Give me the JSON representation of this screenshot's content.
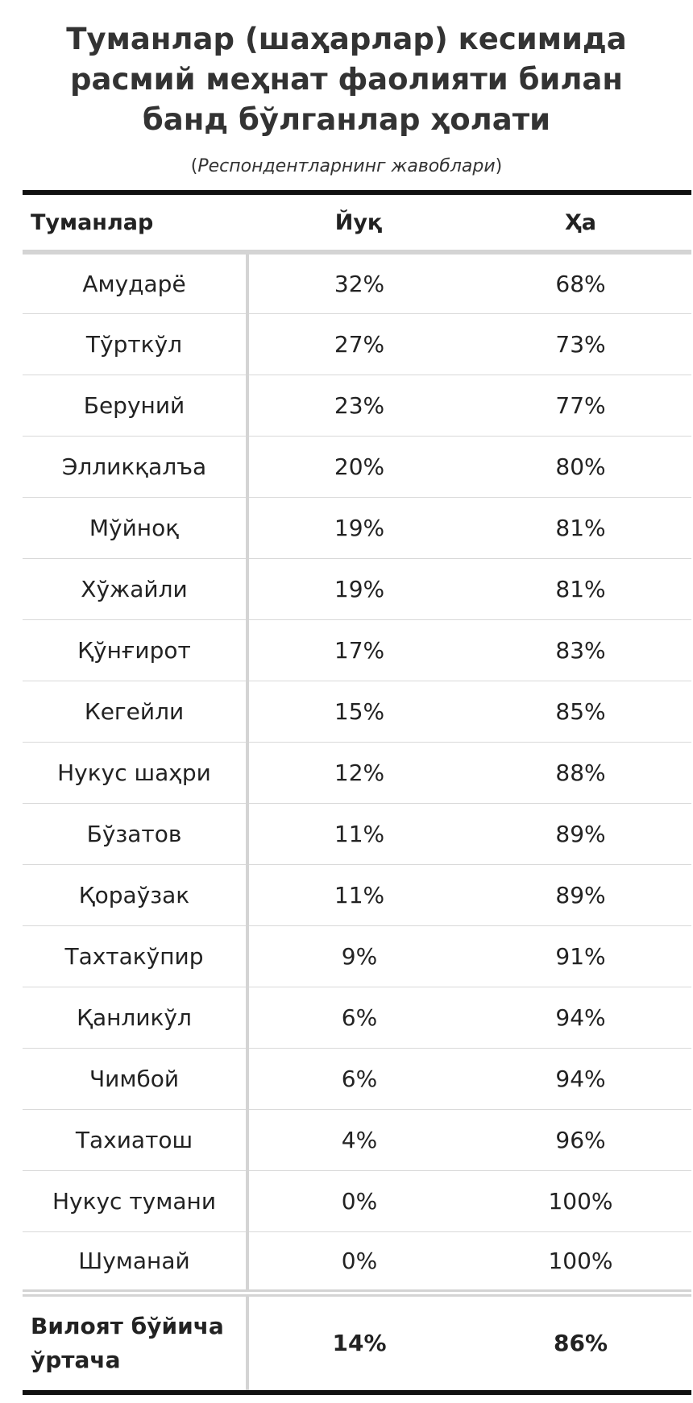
{
  "chart_data": {
    "type": "table",
    "title": "Туманлар (шаҳарлар) кесимида расмий меҳнат фаолияти билан банд бўлганлар ҳолати",
    "subtitle": "Респондентларнинг жавоблари",
    "columns": [
      "Туманлар",
      "Йуқ",
      "Ҳа"
    ],
    "rows": [
      {
        "district": "Амударё",
        "no": "32%",
        "yes": "68%"
      },
      {
        "district": "Тўрткўл",
        "no": "27%",
        "yes": "73%"
      },
      {
        "district": "Беруний",
        "no": "23%",
        "yes": "77%"
      },
      {
        "district": "Элликқалъа",
        "no": "20%",
        "yes": "80%"
      },
      {
        "district": "Мўйноқ",
        "no": "19%",
        "yes": "81%"
      },
      {
        "district": "Хўжайли",
        "no": "19%",
        "yes": "81%"
      },
      {
        "district": "Қўнғирот",
        "no": "17%",
        "yes": "83%"
      },
      {
        "district": "Кегейли",
        "no": "15%",
        "yes": "85%"
      },
      {
        "district": "Нукус шаҳри",
        "no": "12%",
        "yes": "88%"
      },
      {
        "district": "Бўзатов",
        "no": "11%",
        "yes": "89%"
      },
      {
        "district": "Қораўзак",
        "no": "11%",
        "yes": "89%"
      },
      {
        "district": "Тахтакўпир",
        "no": "9%",
        "yes": "91%"
      },
      {
        "district": "Қанликўл",
        "no": "6%",
        "yes": "94%"
      },
      {
        "district": "Чимбой",
        "no": "6%",
        "yes": "94%"
      },
      {
        "district": "Тахиатош",
        "no": "4%",
        "yes": "96%"
      },
      {
        "district": "Нукус тумани",
        "no": "0%",
        "yes": "100%"
      },
      {
        "district": "Шуманай",
        "no": "0%",
        "yes": "100%"
      }
    ],
    "footer": {
      "label": "Вилоят бўйича ўртача",
      "no": "14%",
      "yes": "86%"
    }
  }
}
